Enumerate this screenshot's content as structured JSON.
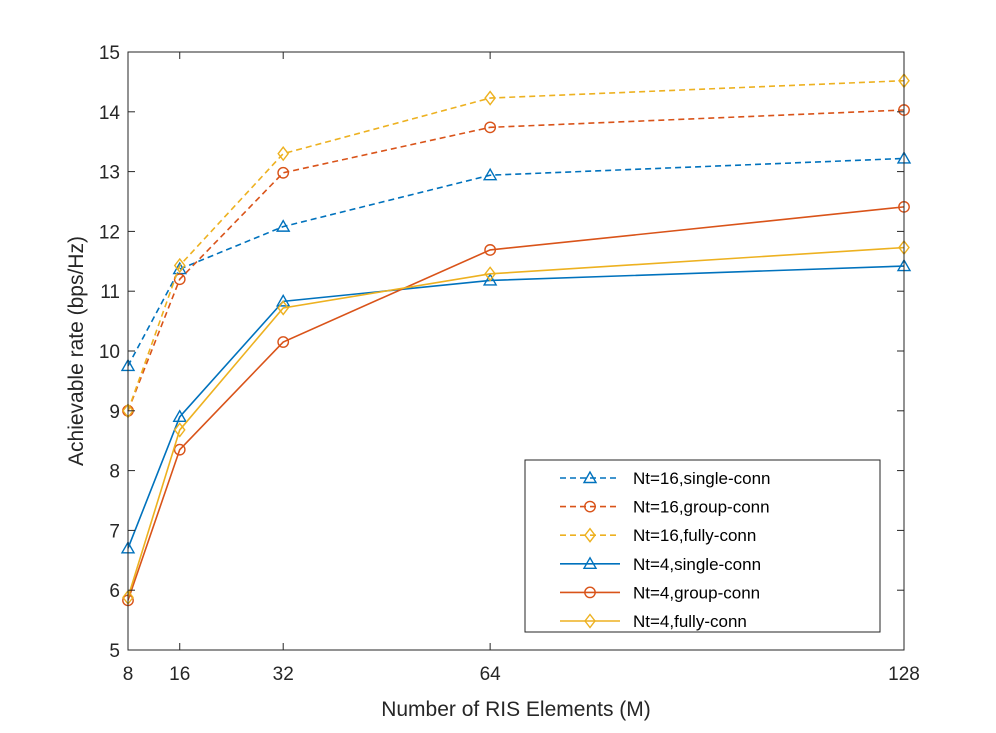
{
  "chart_data": {
    "type": "line",
    "title": "",
    "xlabel": "Number of RIS Elements (M)",
    "ylabel": "Achievable rate (bps/Hz)",
    "x": [
      8,
      16,
      32,
      64,
      128
    ],
    "xticks": [
      8,
      16,
      32,
      64,
      128
    ],
    "xtick_labels": [
      "8",
      "16",
      "32",
      "64",
      "128"
    ],
    "xlim": [
      8,
      128
    ],
    "ylim": [
      5,
      15
    ],
    "yticks": [
      5,
      6,
      7,
      8,
      9,
      10,
      11,
      12,
      13,
      14,
      15
    ],
    "ytick_labels": [
      "5",
      "6",
      "7",
      "8",
      "9",
      "10",
      "11",
      "12",
      "13",
      "14",
      "15"
    ],
    "grid": false,
    "legend_position": "bottom-right",
    "series": [
      {
        "name": "Nt=16,single-conn",
        "values": [
          9.75,
          11.37,
          12.08,
          12.94,
          13.22
        ],
        "color": "#0072BD",
        "dash": "dashed",
        "marker": "triangle"
      },
      {
        "name": "Nt=16,group-conn",
        "values": [
          9.0,
          11.2,
          12.98,
          13.74,
          14.03
        ],
        "color": "#D95319",
        "dash": "dashed",
        "marker": "circle"
      },
      {
        "name": "Nt=16,fully-conn",
        "values": [
          9.0,
          11.43,
          13.3,
          14.23,
          14.52
        ],
        "color": "#EDB120",
        "dash": "dashed",
        "marker": "diamond"
      },
      {
        "name": "Nt=4,single-conn",
        "values": [
          6.7,
          8.9,
          10.83,
          11.18,
          11.42
        ],
        "color": "#0072BD",
        "dash": "solid",
        "marker": "triangle"
      },
      {
        "name": "Nt=4,group-conn",
        "values": [
          5.83,
          8.35,
          10.15,
          11.69,
          12.41
        ],
        "color": "#D95319",
        "dash": "solid",
        "marker": "circle"
      },
      {
        "name": "Nt=4,fully-conn",
        "values": [
          5.88,
          8.68,
          10.72,
          11.29,
          11.73
        ],
        "color": "#EDB120",
        "dash": "solid",
        "marker": "diamond"
      }
    ]
  }
}
